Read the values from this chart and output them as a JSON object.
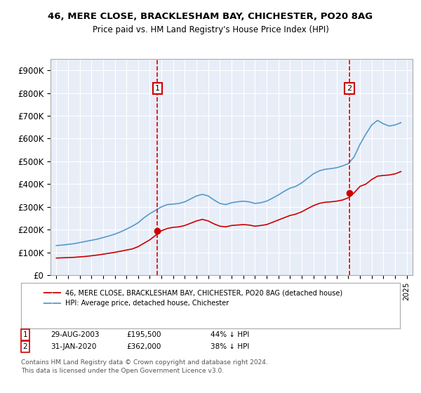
{
  "title1": "46, MERE CLOSE, BRACKLESHAM BAY, CHICHESTER, PO20 8AG",
  "title2": "Price paid vs. HM Land Registry's House Price Index (HPI)",
  "ylabel": "",
  "ylim": [
    0,
    950000
  ],
  "yticks": [
    0,
    100000,
    200000,
    300000,
    400000,
    500000,
    600000,
    700000,
    800000,
    900000
  ],
  "ytick_labels": [
    "£0",
    "£100K",
    "£200K",
    "£300K",
    "£400K",
    "£500K",
    "£600K",
    "£700K",
    "£800K",
    "£900K"
  ],
  "background_color": "#e8eef8",
  "plot_bg_color": "#e8eef8",
  "grid_color": "#ffffff",
  "red_line_color": "#cc0000",
  "blue_line_color": "#5599cc",
  "marker1_year": 2003.66,
  "marker1_price": 195500,
  "marker1_label": "1",
  "marker2_year": 2020.08,
  "marker2_price": 362000,
  "marker2_label": "2",
  "vline_color": "#dd0000",
  "legend_label_red": "46, MERE CLOSE, BRACKLESHAM BAY, CHICHESTER, PO20 8AG (detached house)",
  "legend_label_blue": "HPI: Average price, detached house, Chichester",
  "table_rows": [
    {
      "num": "1",
      "date": "29-AUG-2003",
      "price": "£195,500",
      "pct": "44% ↓ HPI"
    },
    {
      "num": "2",
      "date": "31-JAN-2020",
      "price": "£362,000",
      "pct": "38% ↓ HPI"
    }
  ],
  "footnote1": "Contains HM Land Registry data © Crown copyright and database right 2024.",
  "footnote2": "This data is licensed under the Open Government Licence v3.0.",
  "hpi_x": [
    1995,
    1995.5,
    1996,
    1996.5,
    1997,
    1997.5,
    1998,
    1998.5,
    1999,
    1999.5,
    2000,
    2000.5,
    2001,
    2001.5,
    2002,
    2002.5,
    2003,
    2003.5,
    2004,
    2004.5,
    2005,
    2005.5,
    2006,
    2006.5,
    2007,
    2007.5,
    2008,
    2008.5,
    2009,
    2009.5,
    2010,
    2010.5,
    2011,
    2011.5,
    2012,
    2012.5,
    2013,
    2013.5,
    2014,
    2014.5,
    2015,
    2015.5,
    2016,
    2016.5,
    2017,
    2017.5,
    2018,
    2018.5,
    2019,
    2019.5,
    2020,
    2020.5,
    2021,
    2021.5,
    2022,
    2022.5,
    2023,
    2023.5,
    2024,
    2024.5
  ],
  "hpi_y": [
    130000,
    132000,
    135000,
    138000,
    143000,
    148000,
    153000,
    158000,
    165000,
    172000,
    180000,
    190000,
    202000,
    215000,
    230000,
    252000,
    270000,
    285000,
    300000,
    310000,
    312000,
    315000,
    322000,
    335000,
    348000,
    355000,
    348000,
    330000,
    315000,
    310000,
    318000,
    322000,
    325000,
    322000,
    315000,
    318000,
    325000,
    338000,
    352000,
    368000,
    382000,
    390000,
    405000,
    425000,
    445000,
    458000,
    465000,
    468000,
    472000,
    480000,
    490000,
    520000,
    575000,
    620000,
    660000,
    680000,
    665000,
    655000,
    660000,
    670000
  ],
  "price_x": [
    1995,
    1995.5,
    1996,
    1996.5,
    1997,
    1997.5,
    1998,
    1998.5,
    1999,
    1999.5,
    2000,
    2000.5,
    2001,
    2001.5,
    2002,
    2002.5,
    2003,
    2003.5,
    2004,
    2004.5,
    2005,
    2005.5,
    2006,
    2006.5,
    2007,
    2007.5,
    2008,
    2008.5,
    2009,
    2009.5,
    2010,
    2010.5,
    2011,
    2011.5,
    2012,
    2012.5,
    2013,
    2013.5,
    2014,
    2014.5,
    2015,
    2015.5,
    2016,
    2016.5,
    2017,
    2017.5,
    2018,
    2018.5,
    2019,
    2019.5,
    2020,
    2020.5,
    2021,
    2021.5,
    2022,
    2022.5,
    2023,
    2023.5,
    2024,
    2024.5
  ],
  "price_y": [
    75000,
    76000,
    77000,
    78000,
    80000,
    82000,
    85000,
    88000,
    92000,
    96000,
    100000,
    105000,
    110000,
    115000,
    125000,
    140000,
    155000,
    175000,
    195000,
    205000,
    210000,
    212000,
    218000,
    228000,
    238000,
    245000,
    238000,
    225000,
    215000,
    212000,
    218000,
    220000,
    222000,
    220000,
    215000,
    218000,
    222000,
    232000,
    242000,
    252000,
    262000,
    268000,
    278000,
    292000,
    305000,
    315000,
    320000,
    322000,
    325000,
    330000,
    340000,
    362000,
    390000,
    400000,
    420000,
    435000,
    438000,
    440000,
    445000,
    455000
  ]
}
